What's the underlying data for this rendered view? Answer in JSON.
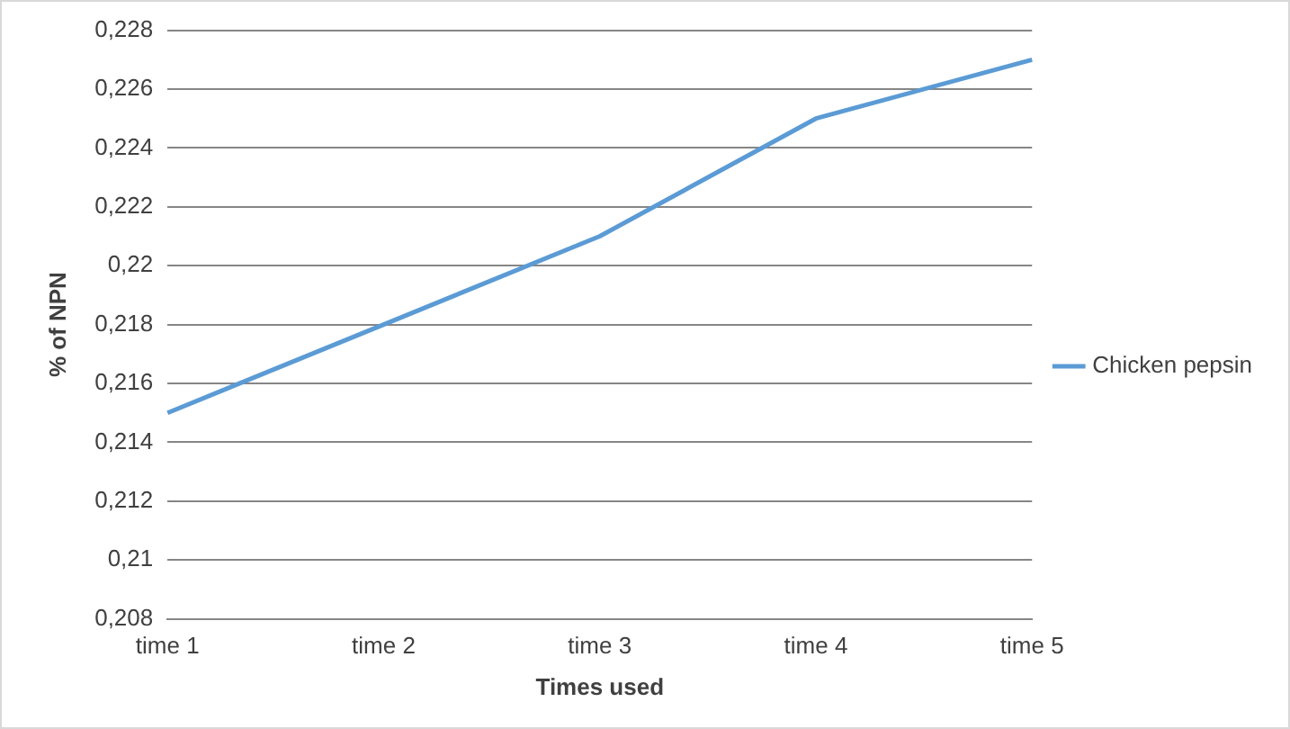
{
  "chart_data": {
    "type": "line",
    "xlabel": "Times used",
    "ylabel": "% of NPN",
    "categories": [
      "time 1",
      "time 2",
      "time 3",
      "time 4",
      "time 5"
    ],
    "series": [
      {
        "name": "Chicken pepsin",
        "color": "#5b9bd5",
        "values": [
          0.215,
          0.218,
          0.221,
          0.225,
          0.227
        ]
      }
    ],
    "ylim": [
      0.208,
      0.228
    ],
    "yticks": [
      {
        "value": 0.208,
        "label": "0,208"
      },
      {
        "value": 0.21,
        "label": "0,21"
      },
      {
        "value": 0.212,
        "label": "0,212"
      },
      {
        "value": 0.214,
        "label": "0,214"
      },
      {
        "value": 0.216,
        "label": "0,216"
      },
      {
        "value": 0.218,
        "label": "0,218"
      },
      {
        "value": 0.22,
        "label": "0,22"
      },
      {
        "value": 0.222,
        "label": "0,222"
      },
      {
        "value": 0.224,
        "label": "0,224"
      },
      {
        "value": 0.226,
        "label": "0,226"
      },
      {
        "value": 0.228,
        "label": "0,228"
      }
    ],
    "grid": "y",
    "legend": "right",
    "marker": "none",
    "line_style": "solid"
  }
}
